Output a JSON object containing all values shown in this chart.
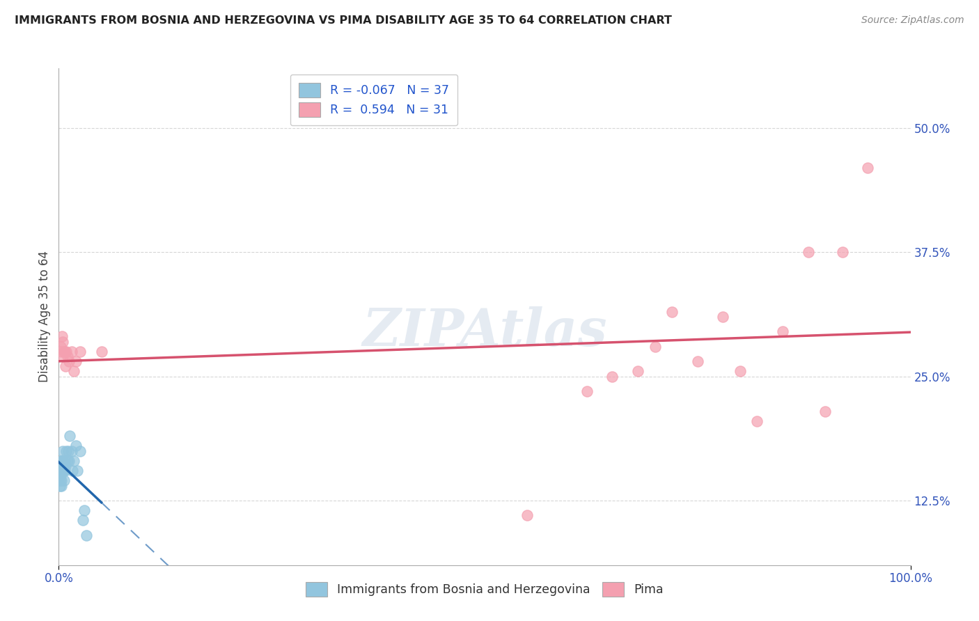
{
  "title": "IMMIGRANTS FROM BOSNIA AND HERZEGOVINA VS PIMA DISABILITY AGE 35 TO 64 CORRELATION CHART",
  "source": "Source: ZipAtlas.com",
  "ylabel": "Disability Age 35 to 64",
  "R_blue": -0.067,
  "N_blue": 37,
  "R_pink": 0.594,
  "N_pink": 31,
  "legend_blue": "Immigrants from Bosnia and Herzegovina",
  "legend_pink": "Pima",
  "blue_color": "#92c5de",
  "pink_color": "#f4a0b0",
  "blue_line_color": "#2166ac",
  "pink_line_color": "#d6526e",
  "blue_line_solid_end": 0.05,
  "xlim": [
    0.0,
    1.0
  ],
  "ylim": [
    0.06,
    0.56
  ],
  "x_ticks": [
    0.0,
    1.0
  ],
  "x_tick_labels": [
    "0.0%",
    "100.0%"
  ],
  "y_ticks": [
    0.125,
    0.25,
    0.375,
    0.5
  ],
  "y_tick_labels": [
    "12.5%",
    "25.0%",
    "37.5%",
    "50.0%"
  ],
  "blue_x": [
    0.001,
    0.001,
    0.001,
    0.002,
    0.002,
    0.002,
    0.003,
    0.003,
    0.003,
    0.003,
    0.003,
    0.004,
    0.004,
    0.004,
    0.005,
    0.005,
    0.005,
    0.005,
    0.006,
    0.006,
    0.007,
    0.007,
    0.008,
    0.009,
    0.01,
    0.011,
    0.012,
    0.013,
    0.015,
    0.016,
    0.018,
    0.02,
    0.022,
    0.025,
    0.028,
    0.03,
    0.032
  ],
  "blue_y": [
    0.155,
    0.145,
    0.14,
    0.155,
    0.16,
    0.15,
    0.155,
    0.16,
    0.165,
    0.14,
    0.145,
    0.155,
    0.16,
    0.165,
    0.155,
    0.165,
    0.175,
    0.16,
    0.155,
    0.145,
    0.155,
    0.165,
    0.16,
    0.175,
    0.165,
    0.175,
    0.165,
    0.19,
    0.175,
    0.155,
    0.165,
    0.18,
    0.155,
    0.175,
    0.105,
    0.115,
    0.09
  ],
  "pink_x": [
    0.002,
    0.003,
    0.004,
    0.005,
    0.005,
    0.006,
    0.007,
    0.008,
    0.009,
    0.01,
    0.012,
    0.015,
    0.018,
    0.02,
    0.025,
    0.05,
    0.55,
    0.62,
    0.65,
    0.68,
    0.7,
    0.72,
    0.75,
    0.78,
    0.8,
    0.82,
    0.85,
    0.88,
    0.9,
    0.92,
    0.95
  ],
  "pink_y": [
    0.28,
    0.275,
    0.29,
    0.27,
    0.285,
    0.275,
    0.275,
    0.26,
    0.275,
    0.27,
    0.265,
    0.275,
    0.255,
    0.265,
    0.275,
    0.275,
    0.11,
    0.235,
    0.25,
    0.255,
    0.28,
    0.315,
    0.265,
    0.31,
    0.255,
    0.205,
    0.295,
    0.375,
    0.215,
    0.375,
    0.46
  ],
  "background_color": "#ffffff",
  "grid_color": "#cccccc"
}
